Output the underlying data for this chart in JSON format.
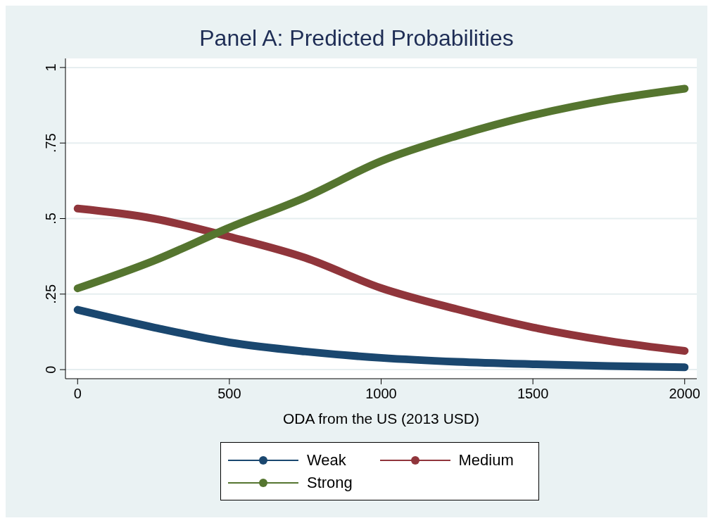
{
  "chart_data": {
    "type": "line",
    "title": "Panel A: Predicted Probabilities",
    "xlabel": "ODA from the US (2013 USD)",
    "x": [
      0,
      250,
      500,
      750,
      1000,
      1250,
      1500,
      1750,
      2000
    ],
    "series": [
      {
        "name": "Weak",
        "color": "#1a476f",
        "values": [
          0.198,
          0.14,
          0.09,
          0.06,
          0.039,
          0.026,
          0.018,
          0.012,
          0.008
        ]
      },
      {
        "name": "Medium",
        "color": "#90353b",
        "values": [
          0.533,
          0.5,
          0.44,
          0.37,
          0.27,
          0.2,
          0.14,
          0.095,
          0.062
        ]
      },
      {
        "name": "Strong",
        "color": "#55752f",
        "values": [
          0.269,
          0.36,
          0.47,
          0.57,
          0.69,
          0.774,
          0.842,
          0.893,
          0.93
        ]
      }
    ],
    "xlim": [
      -40,
      2040
    ],
    "xticks": [
      0,
      500,
      1000,
      1500,
      2000
    ],
    "ylim": [
      -0.03,
      1.03
    ],
    "yticks": [
      {
        "value": 0,
        "label": "0"
      },
      {
        "value": 0.25,
        "label": ".25"
      },
      {
        "value": 0.5,
        "label": ".5"
      },
      {
        "value": 0.75,
        "label": ".75"
      },
      {
        "value": 1,
        "label": "1"
      }
    ],
    "grid": "y",
    "legend": "bottom",
    "marker": "none",
    "line_style": "solid"
  }
}
